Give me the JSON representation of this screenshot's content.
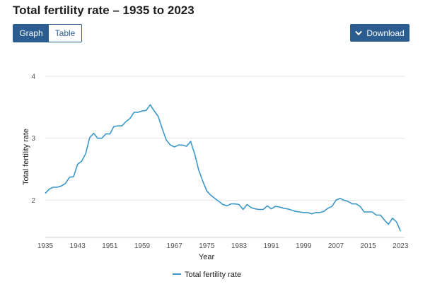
{
  "header": {
    "title": "Total fertility rate – 1935 to 2023"
  },
  "toolbar": {
    "graph_label": "Graph",
    "table_label": "Table",
    "download_label": "Download",
    "download_icon": "chevron-down-icon"
  },
  "colors": {
    "accent": "#2b5d91",
    "series": "#3a98c8",
    "grid": "#e6e6e6"
  },
  "chart_data": {
    "type": "line",
    "title": "",
    "xlabel": "Year",
    "ylabel": "Total fertility rate",
    "xlim": [
      1935,
      2024
    ],
    "ylim": [
      1.4,
      4
    ],
    "yticks": [
      2,
      3,
      4
    ],
    "xticks": [
      1935,
      1943,
      1951,
      1959,
      1967,
      1975,
      1983,
      1991,
      1999,
      2007,
      2015,
      2023
    ],
    "grid": true,
    "legend_position": "bottom",
    "series": [
      {
        "name": "Total fertility rate",
        "x": [
          1935,
          1936,
          1937,
          1938,
          1939,
          1940,
          1941,
          1942,
          1943,
          1944,
          1945,
          1946,
          1947,
          1948,
          1949,
          1950,
          1951,
          1952,
          1953,
          1954,
          1955,
          1956,
          1957,
          1958,
          1959,
          1960,
          1961,
          1962,
          1963,
          1964,
          1965,
          1966,
          1967,
          1968,
          1969,
          1970,
          1971,
          1972,
          1973,
          1974,
          1975,
          1976,
          1977,
          1978,
          1979,
          1980,
          1981,
          1982,
          1983,
          1984,
          1985,
          1986,
          1987,
          1988,
          1989,
          1990,
          1991,
          1992,
          1993,
          1994,
          1995,
          1996,
          1997,
          1998,
          1999,
          2000,
          2001,
          2002,
          2003,
          2004,
          2005,
          2006,
          2007,
          2008,
          2009,
          2010,
          2011,
          2012,
          2013,
          2014,
          2015,
          2016,
          2017,
          2018,
          2019,
          2020,
          2021,
          2022,
          2023
        ],
        "values": [
          2.11,
          2.18,
          2.21,
          2.21,
          2.23,
          2.27,
          2.37,
          2.38,
          2.58,
          2.63,
          2.75,
          3.01,
          3.08,
          3.0,
          3.0,
          3.07,
          3.07,
          3.19,
          3.2,
          3.2,
          3.27,
          3.32,
          3.42,
          3.42,
          3.44,
          3.45,
          3.54,
          3.44,
          3.35,
          3.15,
          2.97,
          2.89,
          2.86,
          2.89,
          2.89,
          2.87,
          2.95,
          2.75,
          2.49,
          2.31,
          2.15,
          2.08,
          2.03,
          1.98,
          1.93,
          1.91,
          1.94,
          1.94,
          1.93,
          1.85,
          1.93,
          1.88,
          1.86,
          1.85,
          1.85,
          1.91,
          1.86,
          1.9,
          1.89,
          1.87,
          1.86,
          1.84,
          1.82,
          1.81,
          1.8,
          1.8,
          1.78,
          1.8,
          1.8,
          1.82,
          1.87,
          1.9,
          2.0,
          2.03,
          2.0,
          1.98,
          1.94,
          1.94,
          1.9,
          1.81,
          1.81,
          1.81,
          1.76,
          1.76,
          1.68,
          1.61,
          1.71,
          1.65,
          1.5
        ]
      }
    ]
  }
}
